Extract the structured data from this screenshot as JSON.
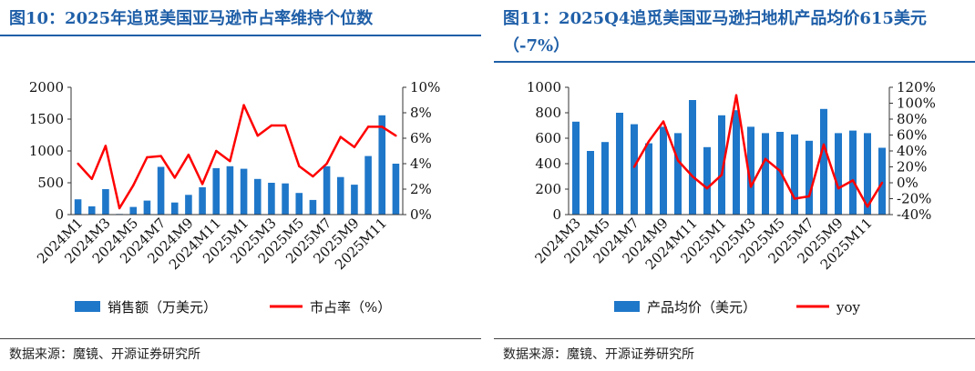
{
  "charts": [
    {
      "title": "图10：2025年追觅美国亚马逊市占率维持个位数",
      "source": "数据来源：魔镜、开源证券研究所",
      "chart_data": {
        "type": "bar+line",
        "categories": [
          "2024M1",
          "2024M2",
          "2024M3",
          "2024M4",
          "2024M5",
          "2024M6",
          "2024M7",
          "2024M8",
          "2024M9",
          "2024M10",
          "2024M11",
          "2024M12",
          "2025M1",
          "2025M2",
          "2025M3",
          "2025M4",
          "2025M5",
          "2025M6",
          "2025M7",
          "2025M8",
          "2025M9",
          "2025M10",
          "2025M11",
          "2025M12"
        ],
        "tick_labels": [
          "2024M1",
          "2024M3",
          "2024M5",
          "2024M7",
          "2024M9",
          "2024M11",
          "2025M1",
          "2025M3",
          "2025M5",
          "2025M7",
          "2025M9",
          "2025M11"
        ],
        "series": [
          {
            "name": "销售额（万美元）",
            "type": "bar",
            "axis": "left",
            "color": "#1f77c9",
            "values": [
              240,
              130,
              400,
              10,
              120,
              220,
              750,
              190,
              310,
              430,
              730,
              760,
              720,
              560,
              500,
              490,
              340,
              230,
              760,
              590,
              470,
              920,
              1560,
              800
            ]
          },
          {
            "name": "市占率（%）",
            "type": "line",
            "axis": "right",
            "color": "#ff0000",
            "values": [
              4.0,
              2.8,
              5.4,
              0.5,
              2.3,
              4.5,
              4.6,
              2.9,
              4.7,
              2.4,
              5.0,
              4.2,
              8.6,
              6.2,
              7.0,
              7.0,
              3.8,
              3.0,
              4.0,
              6.1,
              5.3,
              6.9,
              6.9,
              6.2
            ]
          }
        ],
        "left_axis": {
          "min": 0,
          "max": 2000,
          "ticks": [
            0,
            500,
            1000,
            1500,
            2000
          ]
        },
        "right_axis": {
          "min": 0,
          "max": 10,
          "ticks": [
            "0%",
            "2%",
            "4%",
            "6%",
            "8%",
            "10%"
          ]
        },
        "legend": [
          "销售额（万美元）",
          "市占率（%）"
        ]
      }
    },
    {
      "title": "图11：2025Q4追觅美国亚马逊扫地机产品均价615美元（-7%）",
      "source": "数据来源：魔镜、开源证券研究所",
      "chart_data": {
        "type": "bar+line",
        "categories": [
          "2024M3",
          "2024M4",
          "2024M5",
          "2024M6",
          "2024M7",
          "2024M8",
          "2024M9",
          "2024M10",
          "2024M11",
          "2024M12",
          "2025M1",
          "2025M2",
          "2025M3",
          "2025M4",
          "2025M5",
          "2025M6",
          "2025M7",
          "2025M8",
          "2025M9",
          "2025M10",
          "2025M11",
          "2025M12"
        ],
        "tick_labels": [
          "2024M3",
          "2024M5",
          "2024M7",
          "2024M9",
          "2024M11",
          "2025M1",
          "2025M3",
          "2025M5",
          "2025M7",
          "2025M9",
          "2025M11"
        ],
        "series": [
          {
            "name": "产品均价（美元）",
            "type": "bar",
            "axis": "left",
            "color": "#1f77c9",
            "values": [
              730,
              500,
              570,
              800,
              710,
              560,
              690,
              640,
              900,
              530,
              780,
              820,
              690,
              640,
              650,
              630,
              580,
              830,
              640,
              660,
              640,
              525
            ]
          },
          {
            "name": "yoy",
            "type": "line",
            "axis": "right",
            "color": "#ff0000",
            "values": [
              null,
              null,
              null,
              null,
              20,
              52,
              77,
              28,
              8,
              -7,
              10,
              110,
              -5,
              30,
              15,
              -20,
              -17,
              48,
              -7,
              3,
              -30,
              0
            ]
          }
        ],
        "left_axis": {
          "min": 0,
          "max": 1000,
          "ticks": [
            0,
            200,
            400,
            600,
            800,
            1000
          ]
        },
        "right_axis": {
          "min": -40,
          "max": 120,
          "ticks": [
            "-40%",
            "-20%",
            "0%",
            "20%",
            "40%",
            "60%",
            "80%",
            "100%",
            "120%"
          ]
        },
        "legend": [
          "产品均价（美元）",
          "yoy"
        ]
      }
    }
  ]
}
